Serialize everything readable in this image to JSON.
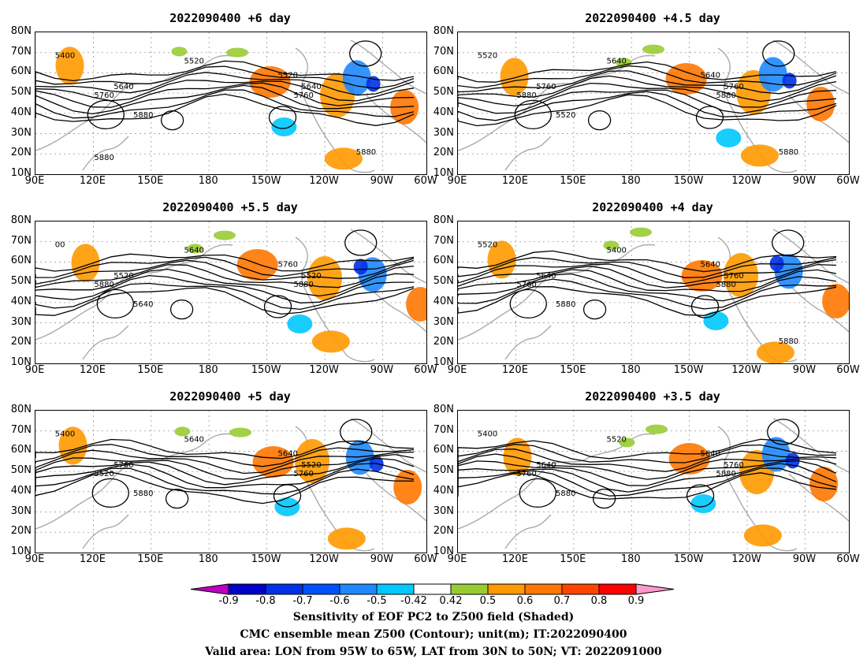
{
  "panels": [
    {
      "title": "2022090400  +6  day",
      "labels": [
        "5400",
        "5520",
        "5640",
        "5760",
        "5880",
        "5520",
        "5640",
        "5760",
        "5880",
        "5880"
      ]
    },
    {
      "title": "2022090400  +4.5  day",
      "labels": [
        "5520",
        "5640",
        "5760",
        "5880",
        "5520",
        "5640",
        "5760",
        "5880",
        "5880"
      ]
    },
    {
      "title": "2022090400  +5.5  day",
      "labels": [
        "00",
        "5640",
        "5520",
        "5880",
        "5640",
        "5760",
        "5520",
        "5880"
      ]
    },
    {
      "title": "2022090400  +4  day",
      "labels": [
        "5520",
        "5400",
        "5640",
        "5760",
        "5880",
        "5640",
        "5760",
        "5880",
        "5880"
      ]
    },
    {
      "title": "2022090400  +5  day",
      "labels": [
        "5400",
        "5640",
        "5760",
        "5520",
        "5880",
        "5640",
        "5520",
        "5760"
      ]
    },
    {
      "title": "2022090400  +3.5  day",
      "labels": [
        "5400",
        "5520",
        "5640",
        "5760",
        "5880",
        "5640",
        "5760",
        "5880"
      ]
    }
  ],
  "y_axis": [
    "80N",
    "70N",
    "60N",
    "50N",
    "40N",
    "30N",
    "20N",
    "10N"
  ],
  "x_axis": [
    "90E",
    "120E",
    "150E",
    "180",
    "150W",
    "120W",
    "90W",
    "60W"
  ],
  "colorbar": {
    "labels": [
      "-0.9",
      "-0.8",
      "-0.7",
      "-0.6",
      "-0.5",
      "-0.42",
      "0.42",
      "0.5",
      "0.6",
      "0.7",
      "0.8",
      "0.9"
    ],
    "colors": [
      "#c000c0",
      "#0000c8",
      "#0030e8",
      "#0050ff",
      "#1e88ff",
      "#00c8ff",
      "#ffffff",
      "#99cc33",
      "#ff9900",
      "#ff7700",
      "#ff4400",
      "#ff0000",
      "#ff99cc"
    ]
  },
  "caption": {
    "line1": "Sensitivity of EOF PC2 to Z500 field (Shaded)",
    "line2": "CMC ensemble mean Z500 (Contour); unit(m); IT:2022090400",
    "line3": "Valid area: LON from 95W to 65W, LAT from 30N to 50N; VT: 2022091000"
  }
}
